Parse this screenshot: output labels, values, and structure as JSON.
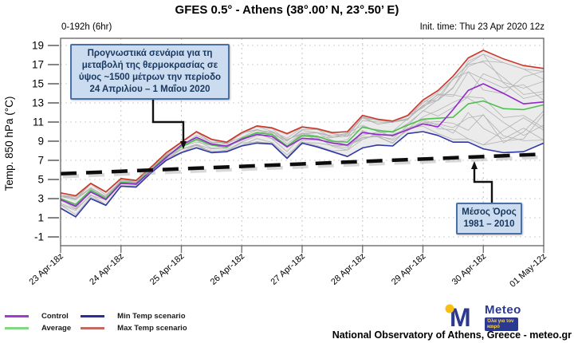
{
  "header": {
    "title": "GFES 0.5° - Athens (38°.00’ N, 23°.50’ E)",
    "range_label": "0-192h (6hr)",
    "init_label": "Init. time: Thu 23 Apr 2020 12z"
  },
  "chart_data": {
    "type": "line",
    "title": "GFES 0.5° - Athens (38°.00’ N, 23°.50’ E)",
    "subtitle_left": "0-192h (6hr)",
    "init_time": "Thu 23 Apr 2020 12z",
    "ylabel": "Temp. 850 hPa (°C)",
    "ylim": [
      -1,
      19
    ],
    "y_ticks": [
      19,
      17,
      15,
      13,
      11,
      9,
      7,
      5,
      3,
      1,
      -1
    ],
    "x_tick_labels": [
      "23 Apr-18z",
      "24 Apr-18z",
      "25 Apr-18z",
      "26 Apr-18z",
      "27 Apr-18z",
      "28 Apr-18z",
      "29 Apr-18z",
      "30 Apr-18z",
      "01 May-12z"
    ],
    "x_tick_steps": [
      0,
      4,
      8,
      12,
      16,
      20,
      24,
      28,
      31
    ],
    "n_points": 32,
    "time_step_hours": 6,
    "grid": true,
    "legend_position": "bottom-left",
    "series": [
      {
        "name": "Control",
        "color": "#9229cc",
        "values": [
          2.9,
          2.2,
          3.7,
          2.9,
          4.6,
          4.5,
          5.9,
          7.3,
          8.6,
          9.4,
          8.7,
          8.5,
          9.2,
          9.7,
          9.5,
          8.4,
          9.3,
          9.2,
          8.8,
          8.6,
          9.9,
          9.7,
          9.6,
          10.2,
          10.8,
          10.5,
          12.3,
          14.3,
          15.0,
          14.0,
          12.9,
          13.1
        ]
      },
      {
        "name": "Average",
        "color": "#4ec04e",
        "values": [
          3.0,
          2.4,
          3.9,
          3.0,
          4.7,
          4.6,
          6.0,
          7.4,
          8.4,
          9.2,
          8.6,
          8.4,
          9.3,
          9.9,
          9.7,
          8.5,
          9.6,
          9.5,
          9.0,
          8.9,
          10.5,
          10.1,
          10.0,
          10.7,
          11.3,
          11.4,
          11.5,
          12.9,
          13.2,
          12.4,
          12.3,
          12.8
        ]
      },
      {
        "name": "Min Temp scenario",
        "color": "#3038a8",
        "values": [
          2.0,
          1.1,
          3.0,
          2.3,
          4.3,
          4.2,
          5.7,
          7.0,
          7.8,
          8.3,
          7.8,
          7.9,
          8.5,
          8.8,
          8.7,
          7.2,
          8.8,
          8.4,
          7.9,
          7.4,
          8.3,
          8.6,
          8.5,
          9.8,
          10.0,
          9.6,
          8.9,
          8.9,
          8.2,
          7.8,
          7.9,
          8.8
        ]
      },
      {
        "name": "Max Temp scenario",
        "color": "#cb3627",
        "values": [
          3.6,
          3.3,
          4.6,
          3.7,
          5.1,
          4.9,
          6.3,
          7.8,
          8.9,
          10.0,
          9.2,
          8.9,
          9.9,
          10.6,
          10.4,
          9.8,
          10.5,
          10.3,
          9.9,
          10.0,
          11.7,
          11.3,
          11.1,
          11.7,
          13.3,
          14.3,
          15.8,
          17.7,
          18.5,
          17.6,
          16.9,
          16.6
        ]
      }
    ],
    "climatology": {
      "label": "Μέσος Όρος 1981 – 2010",
      "start": 5.6,
      "end": 7.65,
      "color": "#0d0d0d"
    },
    "ensemble_style": {
      "members": 14,
      "member_color": "#b3b3b3",
      "fill": "#ebebeb"
    }
  },
  "annotations": {
    "scenario_box": {
      "line1": "Προγνωστικά σενάρια για τη",
      "line2": "μεταβολή της θερμοκρασίας σε",
      "line3": "ύψος ~1500 μέτρων την περίοδο",
      "line4": "24 Απριλίου – 1 Μαΐου 2020"
    },
    "mean_box": {
      "line1": "Μέσος Όρος",
      "line2": "1981 – 2010"
    }
  },
  "legend": {
    "items": [
      {
        "label": "Control",
        "color": "#a03ad0"
      },
      {
        "label": "Average",
        "color": "#82d882"
      },
      {
        "label": "Min Temp scenario",
        "color": "#27309a"
      },
      {
        "label": "Max Temp scenario",
        "color": "#c36a62"
      }
    ]
  },
  "footer": {
    "logo_text": "Meteo",
    "logo_tagline": "Όλα για τον καιρό",
    "credit": "National Observatory of Athens, Greece - meteo.gr"
  }
}
